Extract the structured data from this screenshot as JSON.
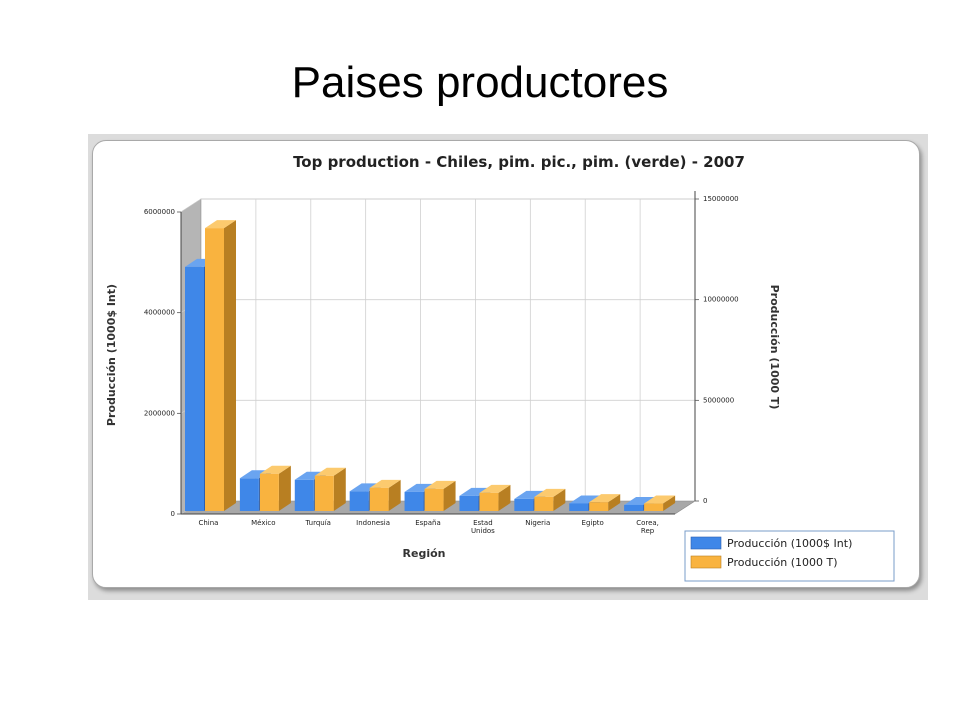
{
  "slide": {
    "title": "Paises productores"
  },
  "colors": {
    "series1_front": "#3f87e8",
    "series1_top": "#6aa4f0",
    "series1_side": "#2c5fb0",
    "series2_front": "#f9b33f",
    "series2_top": "#fcca6e",
    "series2_side": "#b87f22"
  },
  "chart_data": {
    "type": "bar",
    "title": "Top production - Chiles, pim. pic., pim. (verde) - 2007",
    "xlabel": "Región",
    "ylabel": "Producción (1000$ Int)",
    "y2label": "Producción (1000 T)",
    "categories": [
      [
        "China"
      ],
      [
        "México"
      ],
      [
        "Turquía"
      ],
      [
        "Indonesia"
      ],
      [
        "España"
      ],
      [
        "Estad",
        "Unidos"
      ],
      [
        "Nigeria"
      ],
      [
        "Egipto"
      ],
      [
        "Corea,",
        "Rep"
      ]
    ],
    "ylim": [
      0,
      6000000
    ],
    "y2lim": [
      0,
      15000000
    ],
    "yticks": [
      "0",
      "2000000",
      "4000000",
      "6000000"
    ],
    "y2ticks": [
      "0",
      "5000000",
      "10000000",
      "15000000"
    ],
    "series": [
      {
        "name": "Producción (1000$ Int)",
        "axis": "left",
        "values": [
          4850000,
          650000,
          620000,
          390000,
          380000,
          300000,
          240000,
          150000,
          120000
        ]
      },
      {
        "name": "Producción (1000 T)",
        "axis": "right",
        "values": [
          14050000,
          1850000,
          1750000,
          1150000,
          1100000,
          900000,
          700000,
          440000,
          370000
        ]
      }
    ],
    "grid": true,
    "legend_position": "bottom-right"
  }
}
